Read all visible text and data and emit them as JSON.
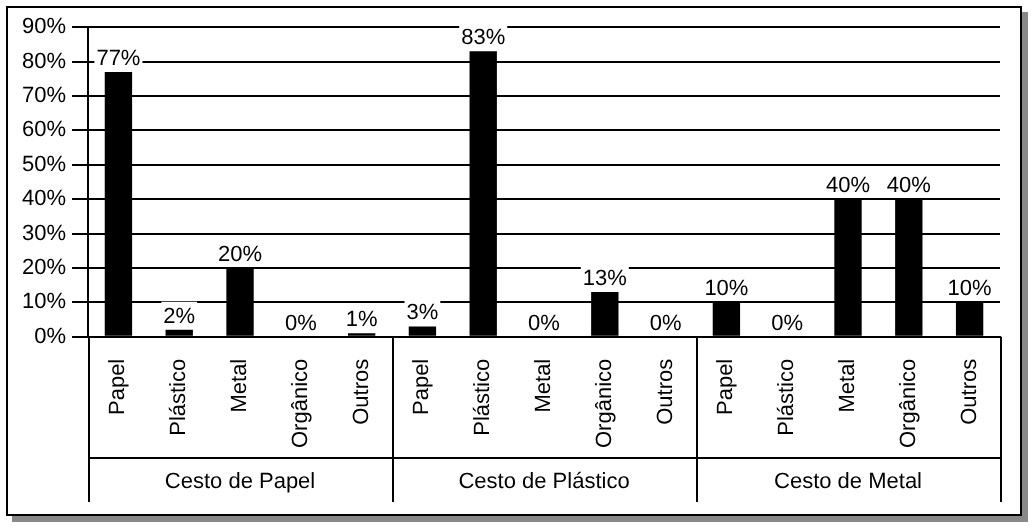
{
  "chart_data": {
    "type": "bar",
    "categories": [
      "Papel",
      "Plástico",
      "Metal",
      "Orgânico",
      "Outros",
      "Papel",
      "Plástico",
      "Metal",
      "Orgânico",
      "Outros",
      "Papel",
      "Plástico",
      "Metal",
      "Orgânico",
      "Outros"
    ],
    "values": [
      77,
      2,
      20,
      0,
      1,
      3,
      83,
      0,
      13,
      0,
      10,
      0,
      40,
      40,
      10
    ],
    "value_labels": [
      "77%",
      "2%",
      "20%",
      "0%",
      "1%",
      "3%",
      "83%",
      "0%",
      "13%",
      "0%",
      "10%",
      "0%",
      "40%",
      "40%",
      "10%"
    ],
    "color": "#000000",
    "ylim": [
      0,
      90
    ],
    "yticks": [
      {
        "value": 0,
        "label": "0%"
      },
      {
        "value": 10,
        "label": "10%"
      },
      {
        "value": 20,
        "label": "20%"
      },
      {
        "value": 30,
        "label": "30%"
      },
      {
        "value": 40,
        "label": "40%"
      },
      {
        "value": 50,
        "label": "50%"
      },
      {
        "value": 60,
        "label": "60%"
      },
      {
        "value": 70,
        "label": "70%"
      },
      {
        "value": 80,
        "label": "80%"
      },
      {
        "value": 90,
        "label": "90%"
      }
    ],
    "grid": "y",
    "annotations": [
      "Cesto de Papel",
      "Cesto de Plástico",
      "Cesto de Metal"
    ]
  }
}
